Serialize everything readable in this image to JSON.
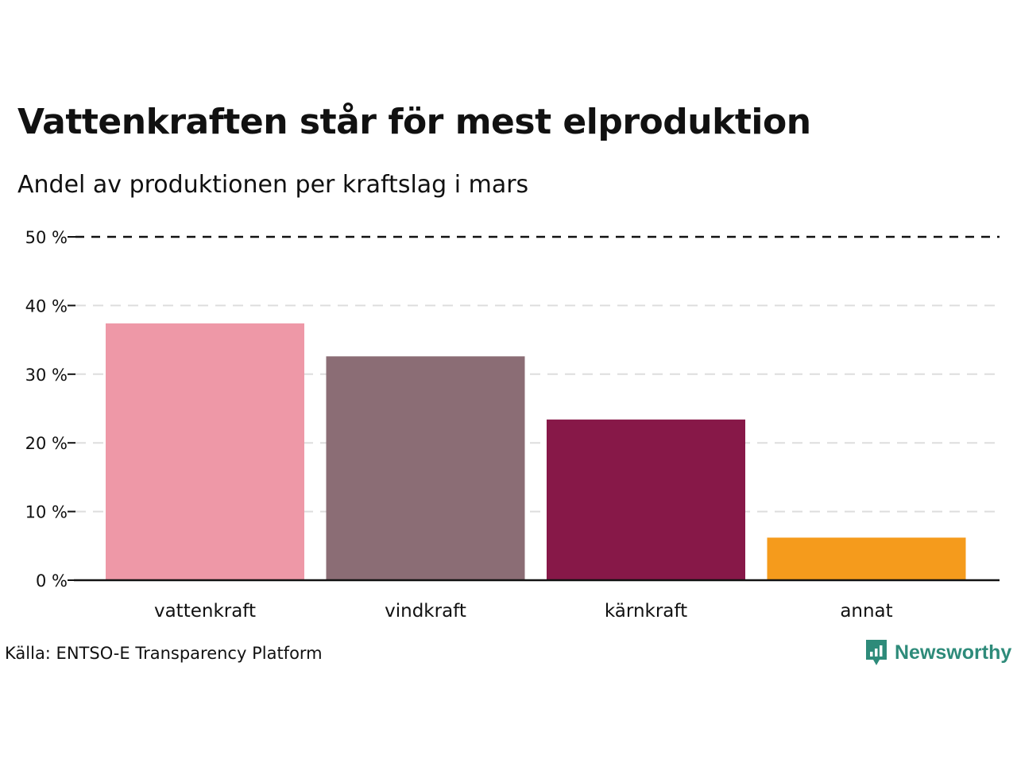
{
  "title": "Vattenkraften står för mest elproduktion",
  "subtitle": "Andel av produktionen per kraftslag i mars",
  "source": "Källa: ENTSO-E Transparency Platform",
  "brand": {
    "name": "Newsworthy",
    "color": "#2e8b7a",
    "icon": "newsworthy-logo-icon"
  },
  "chart_data": {
    "type": "bar",
    "title": "Vattenkraften står för mest elproduktion",
    "subtitle": "Andel av produktionen per kraftslag i mars",
    "xlabel": "",
    "ylabel": "",
    "ylim": [
      0,
      50
    ],
    "yticks": [
      0,
      10,
      20,
      30,
      40,
      50
    ],
    "ytick_labels": [
      "0 %",
      "10 %",
      "20 %",
      "30 %",
      "40 %",
      "50 %"
    ],
    "categories": [
      "vattenkraft",
      "vindkraft",
      "kärnkraft",
      "annat"
    ],
    "values": [
      37.4,
      32.6,
      23.4,
      6.2
    ],
    "colors": [
      "#ee98a7",
      "#8b6d75",
      "#871848",
      "#f59b1c"
    ],
    "grid": true
  }
}
